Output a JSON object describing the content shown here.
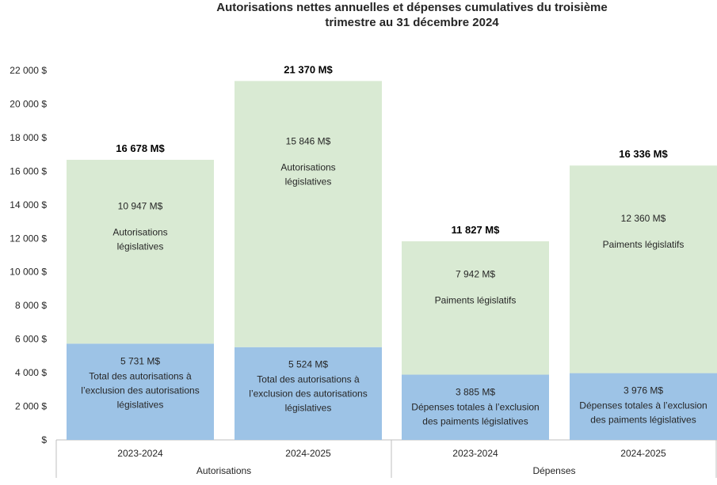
{
  "title_line1": "Autorisations nettes annuelles et dépenses cumulatives du troisième",
  "title_line2": "trimestre au 31 décembre 2024",
  "chart_data": {
    "type": "bar",
    "stacked": true,
    "title": "Autorisations nettes annuelles et dépenses cumulatives du troisième trimestre au 31 décembre 2024",
    "ylabel": "",
    "ylim": [
      0,
      22000
    ],
    "yticks": [
      0,
      2000,
      4000,
      6000,
      8000,
      10000,
      12000,
      14000,
      16000,
      18000,
      20000,
      22000
    ],
    "ytick_labels": [
      "$",
      "2 000 $",
      "4 000 $",
      "6 000 $",
      "8 000 $",
      "10 000 $",
      "12 000 $",
      "14 000 $",
      "16 000 $",
      "18 000 $",
      "20 000 $",
      "22 000 $"
    ],
    "grid": false,
    "colors": {
      "lower": "#9dc3e6",
      "upper": "#d9ead3"
    },
    "bars": [
      {
        "category": "2023-2024",
        "group": "Autorisations",
        "total": 16678,
        "total_label": "16 678 M$",
        "segments": [
          {
            "value": 5731,
            "value_label": "5 731 M$",
            "label_lines": [
              "Total des autorisations à",
              "l’exclusion des autorisations",
              "législatives"
            ]
          },
          {
            "value": 10947,
            "value_label": "10 947 M$",
            "label_lines": [
              "Autorisations",
              "législatives"
            ]
          }
        ]
      },
      {
        "category": "2024-2025",
        "group": "Autorisations",
        "total": 21370,
        "total_label": "21 370 M$",
        "segments": [
          {
            "value": 5524,
            "value_label": "5 524 M$",
            "label_lines": [
              "Total des autorisations à",
              "l’exclusion des autorisations",
              "législatives"
            ]
          },
          {
            "value": 15846,
            "value_label": "15 846 M$",
            "label_lines": [
              "Autorisations",
              "législatives"
            ]
          }
        ]
      },
      {
        "category": "2023-2024",
        "group": "Dépenses",
        "total": 11827,
        "total_label": "11 827 M$",
        "segments": [
          {
            "value": 3885,
            "value_label": "3 885 M$",
            "label_lines": [
              "Dépenses totales à l’exclusion",
              "des paiments législatives"
            ]
          },
          {
            "value": 7942,
            "value_label": "7 942 M$",
            "label_lines": [
              "Paiments législatifs"
            ]
          }
        ]
      },
      {
        "category": "2024-2025",
        "group": "Dépenses",
        "total": 16336,
        "total_label": "16 336 M$",
        "segments": [
          {
            "value": 3976,
            "value_label": "3 976 M$",
            "label_lines": [
              "Dépenses totales à l’exclusion",
              "des paiments législatives"
            ]
          },
          {
            "value": 12360,
            "value_label": "12 360 M$",
            "label_lines": [
              "Paiments législatifs"
            ]
          }
        ]
      }
    ],
    "groups": [
      "Autorisations",
      "Dépenses"
    ]
  }
}
